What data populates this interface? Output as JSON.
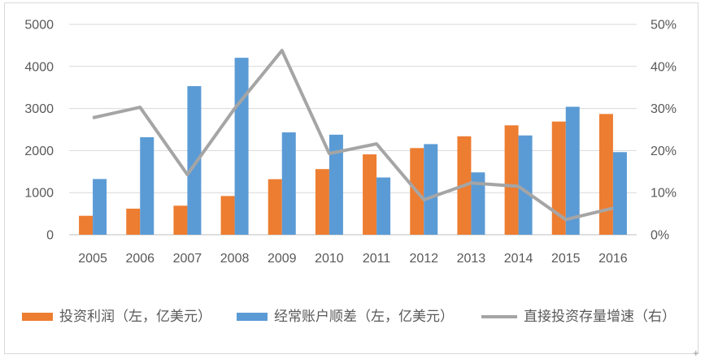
{
  "chart_data": {
    "type": "bar+line",
    "title": "",
    "categories": [
      "2005",
      "2006",
      "2007",
      "2008",
      "2009",
      "2010",
      "2011",
      "2012",
      "2013",
      "2014",
      "2015",
      "2016"
    ],
    "series": [
      {
        "name": "投资利润（左，亿美元）",
        "kind": "bar",
        "axis": "left",
        "color": "#ED7D31",
        "values": [
          450,
          620,
          690,
          920,
          1320,
          1560,
          1910,
          2060,
          2340,
          2600,
          2690,
          2870
        ]
      },
      {
        "name": "经常账户顺差（左，亿美元）",
        "kind": "bar",
        "axis": "left",
        "color": "#5B9BD5",
        "values": [
          1324,
          2318,
          3532,
          4206,
          2433,
          2378,
          1361,
          2154,
          1482,
          2360,
          3042,
          1964
        ]
      },
      {
        "name": "直接投资存量增速（右）",
        "kind": "line",
        "axis": "right",
        "color": "#A5A5A5",
        "values": [
          27.8,
          30.3,
          14.3,
          30.0,
          43.8,
          19.3,
          21.6,
          8.3,
          12.3,
          11.5,
          3.6,
          6.3
        ]
      }
    ],
    "left_axis": {
      "min": 0,
      "max": 5000,
      "tick_labels": [
        "0",
        "1000",
        "2000",
        "3000",
        "4000",
        "5000"
      ]
    },
    "right_axis": {
      "min": 0,
      "max": 50,
      "tick_labels": [
        "0%",
        "10%",
        "20%",
        "30%",
        "40%",
        "50%"
      ]
    },
    "grid": true,
    "legend_position": "bottom"
  },
  "colors": {
    "grid": "#D9D9D9",
    "axis_line": "#BFBFBF",
    "tick_text": "#595959",
    "frame_border": "#D9D9D9",
    "background": "#FFFFFF"
  },
  "corner_plus": "+"
}
